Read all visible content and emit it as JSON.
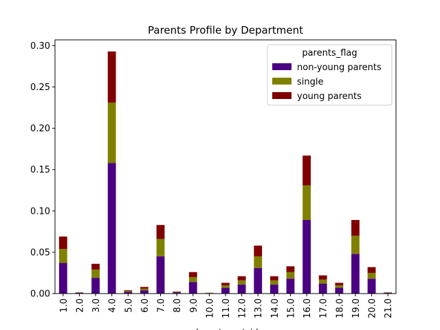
{
  "chart_data": {
    "type": "bar",
    "stacked": true,
    "title": "Parents Profile by Department",
    "xlabel": "department_id",
    "ylabel": "",
    "ylim": [
      0,
      0.307
    ],
    "yticks": [
      "0.00",
      "0.05",
      "0.10",
      "0.15",
      "0.20",
      "0.25",
      "0.30"
    ],
    "categories": [
      "1.0",
      "2.0",
      "3.0",
      "4.0",
      "5.0",
      "6.0",
      "7.0",
      "8.0",
      "9.0",
      "10.0",
      "11.0",
      "12.0",
      "13.0",
      "14.0",
      "15.0",
      "16.0",
      "17.0",
      "18.0",
      "19.0",
      "20.0",
      "21.0"
    ],
    "legend": {
      "title": "parents_flag",
      "placement": "top-right"
    },
    "series": [
      {
        "name": "non-young parents",
        "color": "#4b0082",
        "values": [
          0.037,
          0.001,
          0.019,
          0.158,
          0.002,
          0.004,
          0.045,
          0.0015,
          0.014,
          0.0005,
          0.007,
          0.011,
          0.031,
          0.011,
          0.018,
          0.089,
          0.012,
          0.007,
          0.048,
          0.018,
          0.001
        ]
      },
      {
        "name": "single",
        "color": "#808000",
        "values": [
          0.017,
          0.0003,
          0.01,
          0.073,
          0.001,
          0.002,
          0.021,
          0.0005,
          0.006,
          0.0003,
          0.003,
          0.005,
          0.014,
          0.005,
          0.008,
          0.042,
          0.005,
          0.003,
          0.022,
          0.007,
          0.0003
        ]
      },
      {
        "name": "young parents",
        "color": "#800000",
        "values": [
          0.015,
          0.0002,
          0.007,
          0.062,
          0.001,
          0.002,
          0.017,
          0.0005,
          0.006,
          0.0002,
          0.003,
          0.005,
          0.013,
          0.005,
          0.007,
          0.036,
          0.005,
          0.003,
          0.019,
          0.007,
          0.0002
        ]
      }
    ]
  }
}
